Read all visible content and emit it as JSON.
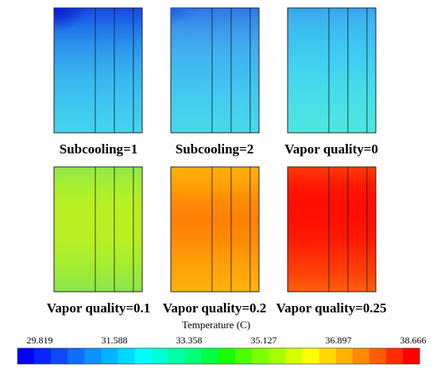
{
  "panels": [
    {
      "label": "Subcooling=1",
      "scheme": "subcool1"
    },
    {
      "label": "Subcooling=2",
      "scheme": "subcool2"
    },
    {
      "label": "Vapor quality=0",
      "scheme": "vq0"
    },
    {
      "label": "Vapor quality=0.1",
      "scheme": "vq01"
    },
    {
      "label": "Vapor quality=0.2",
      "scheme": "vq02"
    },
    {
      "label": "Vapor quality=0.25",
      "scheme": "vq025"
    }
  ],
  "colorbar": {
    "title": "Temperature (C)",
    "ticks": [
      "29.819",
      "31.588",
      "33.358",
      "35.127",
      "36.897",
      "38.666"
    ],
    "colors": [
      "#0000ff",
      "#0a24ff",
      "#0f49ff",
      "#0f6dff",
      "#0b92ff",
      "#00b5ff",
      "#00d9ff",
      "#00fdfa",
      "#00ffd2",
      "#00ffa6",
      "#00ff78",
      "#00ff43",
      "#16ff00",
      "#4cff00",
      "#7cff00",
      "#a8ff00",
      "#d4ff00",
      "#ffff00",
      "#ffd800",
      "#ffb300",
      "#ff8a00",
      "#ff5e00",
      "#ff2e00",
      "#ff0000"
    ]
  },
  "schemes": {
    "subcool1": [
      "#1848e6",
      "#1f6fe9",
      "#2a90ec",
      "#33a6ee",
      "#37b6ef",
      "#3cc2ef",
      "#40cbee",
      "#45d4ed"
    ],
    "subcool2": [
      "#2f76e6",
      "#3a94ea",
      "#3fa9ee",
      "#40b6f0",
      "#41c0f0",
      "#43caef",
      "#46d1ed",
      "#4ad8ea"
    ],
    "vq0": [
      "#3aa6ee",
      "#3cb9f0",
      "#3dc5f0",
      "#40cff0",
      "#44d7ed",
      "#47dde9",
      "#4be2e4",
      "#4fe6de"
    ],
    "vq01": [
      "#8ee84a",
      "#a8ee32",
      "#b6f026",
      "#baf022",
      "#b7f024",
      "#acee2c",
      "#9cea38",
      "#8ae64a"
    ],
    "vq02": [
      "#ffb00c",
      "#ffa008",
      "#ff8a06",
      "#ff8006",
      "#ff8a06",
      "#ff9a08",
      "#ffa60a",
      "#ffb40e"
    ],
    "vq025": [
      "#ff3a06",
      "#ff1a04",
      "#ff0e04",
      "#ff1004",
      "#ff1a04",
      "#ff2e06",
      "#ff4408",
      "#ff600a"
    ]
  }
}
